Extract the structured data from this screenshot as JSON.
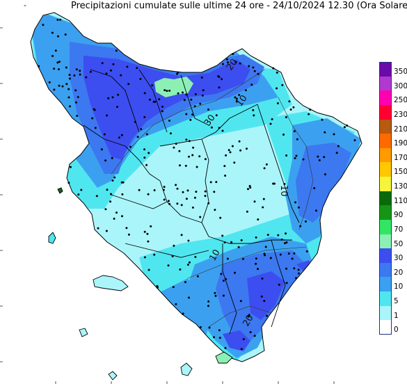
{
  "header": {
    "title": "Precipitazioni cumulate sulle ultime 24 ore - 24/10/2024 12.30 (Ora Solare)",
    "corner_mark": "-"
  },
  "legend": {
    "items": [
      {
        "label": "350",
        "color": "#6a0aa8"
      },
      {
        "label": "300",
        "color": "#b03ad0"
      },
      {
        "label": "250",
        "color": "#ff00b0"
      },
      {
        "label": "230",
        "color": "#ff0030"
      },
      {
        "label": "210",
        "color": "#b85a10"
      },
      {
        "label": "190",
        "color": "#ff6a00"
      },
      {
        "label": "170",
        "color": "#ff9a00"
      },
      {
        "label": "150",
        "color": "#ffc800"
      },
      {
        "label": "130",
        "color": "#f5f53c"
      },
      {
        "label": "110",
        "color": "#0a6a0a"
      },
      {
        "label": "90",
        "color": "#149614"
      },
      {
        "label": "70",
        "color": "#32e664"
      },
      {
        "label": "50",
        "color": "#8cf0b4"
      },
      {
        "label": "30",
        "color": "#3c4ef0"
      },
      {
        "label": "20",
        "color": "#3c78f0"
      },
      {
        "label": "10",
        "color": "#3ca0f0"
      },
      {
        "label": "5",
        "color": "#50e6f0"
      },
      {
        "label": "1",
        "color": "#aaf5fa"
      },
      {
        "label": "0",
        "color": "#ffffff"
      }
    ]
  },
  "map": {
    "contour_labels": [
      "20",
      "10",
      "10",
      "30",
      "20",
      "10"
    ]
  }
}
